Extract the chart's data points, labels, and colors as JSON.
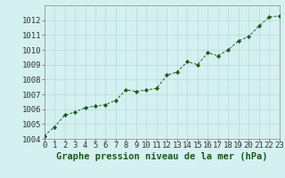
{
  "x": [
    0,
    1,
    2,
    3,
    4,
    5,
    6,
    7,
    8,
    9,
    10,
    11,
    12,
    13,
    14,
    15,
    16,
    17,
    18,
    19,
    20,
    21,
    22,
    23
  ],
  "y": [
    1004.2,
    1004.8,
    1005.6,
    1005.8,
    1006.1,
    1006.2,
    1006.3,
    1006.6,
    1007.3,
    1007.2,
    1007.3,
    1007.4,
    1008.3,
    1008.5,
    1009.2,
    1009.0,
    1009.8,
    1009.6,
    1010.0,
    1010.6,
    1010.9,
    1011.6,
    1012.2,
    1012.3
  ],
  "line_color": "#1a5c1a",
  "marker_color": "#1a5c1a",
  "bg_color": "#d4f0f0",
  "grid_color": "#b8dada",
  "xlabel": "Graphe pression niveau de la mer (hPa)",
  "xlabel_color": "#1a5c1a",
  "xlabel_fontsize": 7.5,
  "tick_fontsize": 6.5,
  "ylim": [
    1004,
    1013
  ],
  "yticks": [
    1004,
    1005,
    1006,
    1007,
    1008,
    1009,
    1010,
    1011,
    1012
  ],
  "xlim": [
    0,
    23
  ],
  "xtick_labels": [
    "0",
    "1",
    "2",
    "3",
    "4",
    "5",
    "6",
    "7",
    "8",
    "9",
    "10",
    "11",
    "12",
    "13",
    "14",
    "15",
    "16",
    "17",
    "18",
    "19",
    "20",
    "21",
    "22",
    "23"
  ]
}
